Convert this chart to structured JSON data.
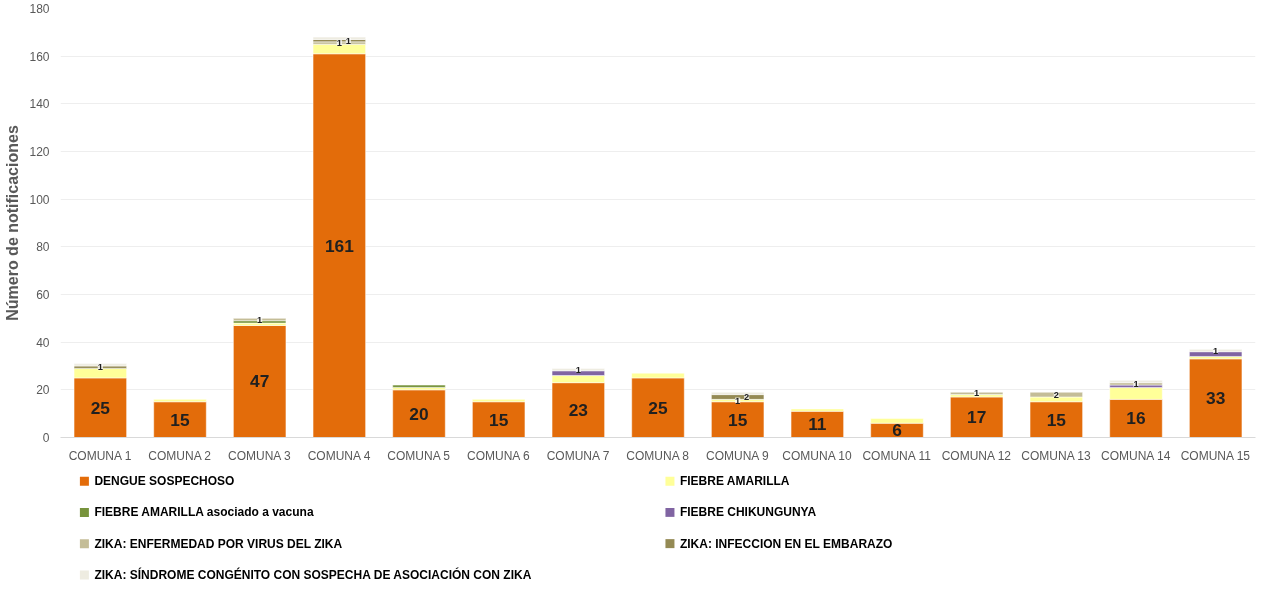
{
  "chart_data": {
    "type": "bar",
    "stacked": true,
    "ylabel": "Número de notificaciones",
    "categories": [
      "COMUNA 1",
      "COMUNA 2",
      "COMUNA 3",
      "COMUNA 4",
      "COMUNA 5",
      "COMUNA 6",
      "COMUNA 7",
      "COMUNA 8",
      "COMUNA 9",
      "COMUNA 10",
      "COMUNA 11",
      "COMUNA 12",
      "COMUNA 13",
      "COMUNA 14",
      "COMUNA 15"
    ],
    "series": [
      {
        "name": "DENGUE SOSPECHOSO",
        "color": "#e36c0a",
        "values": [
          25,
          15,
          47,
          161,
          20,
          15,
          23,
          25,
          15,
          11,
          6,
          17,
          15,
          16,
          33
        ],
        "value_labels": [
          "25",
          "15",
          "47",
          "161",
          "20",
          "15",
          "23",
          "25",
          "15",
          "11",
          "6",
          "17",
          "15",
          "16",
          "33"
        ]
      },
      {
        "name": "FIEBRE AMARILLA",
        "color": "#ffff99",
        "values": [
          4,
          1,
          1,
          4,
          1,
          1,
          3,
          2,
          1,
          1,
          2,
          1,
          2,
          5,
          1
        ],
        "value_labels": [
          null,
          null,
          null,
          null,
          null,
          null,
          null,
          null,
          "1",
          null,
          null,
          null,
          null,
          null,
          null
        ]
      },
      {
        "name": "FIEBRE AMARILLA asociado a vacuna",
        "color": "#77933c",
        "values": [
          null,
          null,
          1,
          null,
          1,
          null,
          null,
          null,
          null,
          null,
          null,
          null,
          null,
          null,
          null
        ]
      },
      {
        "name": "FIEBRE CHIKUNGUNYA",
        "color": "#8064a2",
        "values": [
          null,
          null,
          null,
          null,
          null,
          null,
          2,
          null,
          null,
          null,
          null,
          null,
          null,
          1,
          2
        ]
      },
      {
        "name": "ZIKA: ENFERMEDAD POR VIRUS DEL ZIKA",
        "color": "#c4bd97",
        "values": [
          null,
          null,
          1,
          1,
          null,
          null,
          null,
          null,
          null,
          null,
          null,
          1,
          2,
          1,
          null
        ],
        "value_labels": [
          null,
          null,
          "1",
          "1",
          null,
          null,
          null,
          null,
          null,
          null,
          null,
          "1",
          "2",
          "1",
          null
        ]
      },
      {
        "name": "ZIKA: INFECCION  EN EL EMBARAZO",
        "color": "#948a54",
        "values": [
          1,
          null,
          null,
          1,
          null,
          null,
          null,
          null,
          2,
          null,
          null,
          null,
          null,
          null,
          null
        ],
        "value_labels": [
          "1",
          null,
          null,
          "1",
          null,
          null,
          null,
          null,
          "2",
          null,
          null,
          null,
          null,
          null,
          null
        ]
      },
      {
        "name": "ZIKA: SÍNDROME CONGÉNITO CON SOSPECHA DE ASOCIACIÓN CON ZIKA",
        "color": "#eeece1",
        "values": [
          1,
          null,
          null,
          1,
          null,
          null,
          1,
          null,
          1,
          null,
          null,
          null,
          null,
          1,
          1
        ],
        "value_labels": [
          null,
          null,
          null,
          null,
          null,
          null,
          "1",
          null,
          null,
          null,
          null,
          null,
          null,
          null,
          "1"
        ]
      }
    ],
    "ylim": [
      0,
      180
    ],
    "yticks": [
      0,
      20,
      40,
      60,
      80,
      100,
      120,
      140,
      160,
      180
    ],
    "grid": "y",
    "legend": "bottom"
  }
}
